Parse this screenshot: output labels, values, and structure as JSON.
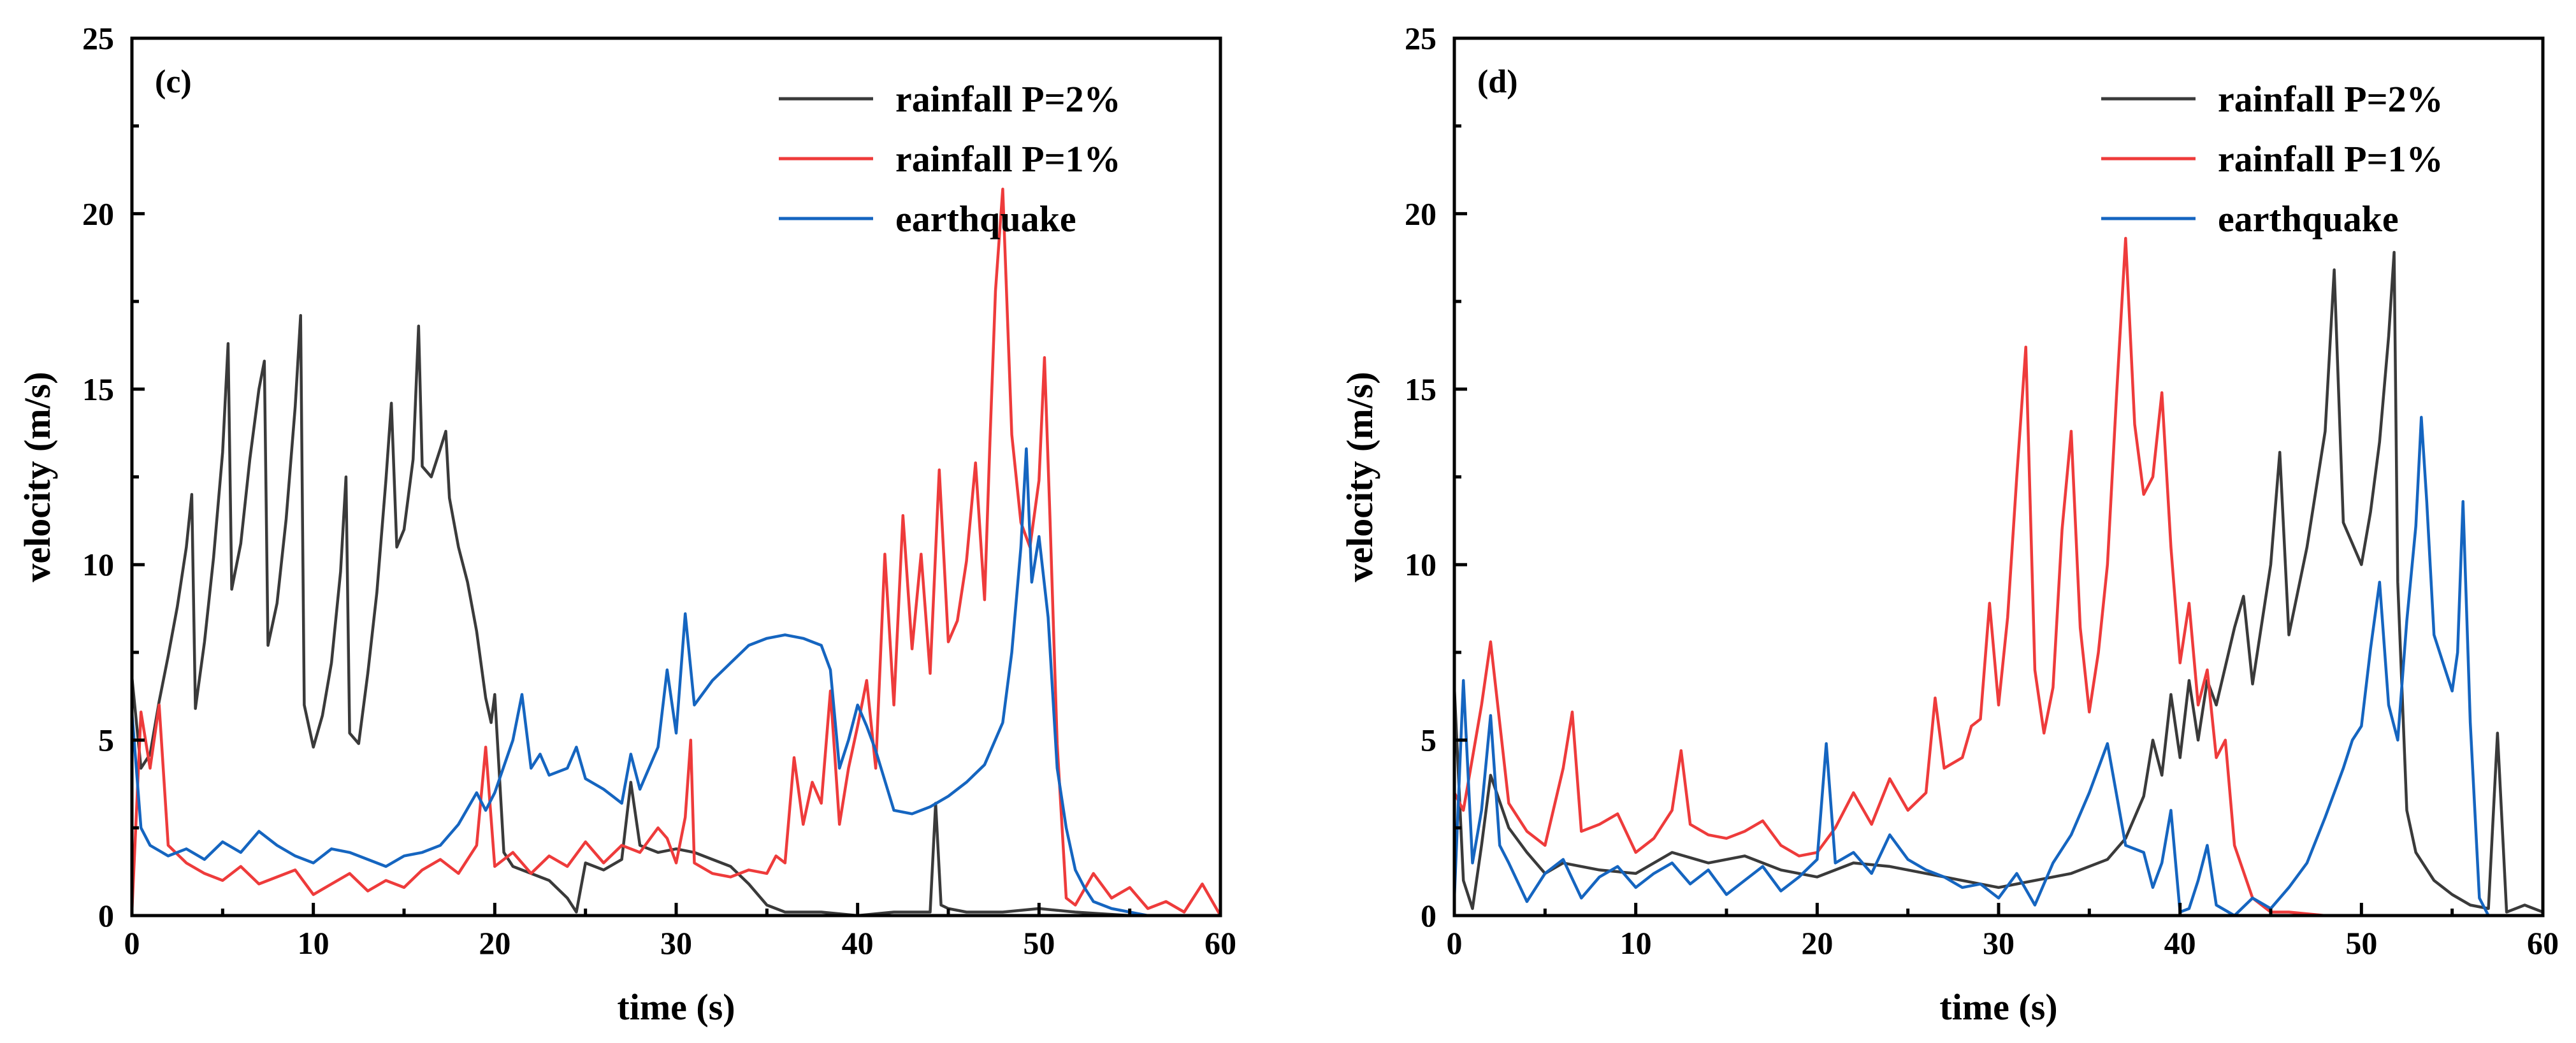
{
  "chart_data": [
    {
      "type": "line",
      "panel_label": "(c)",
      "xlabel": "time (s)",
      "ylabel": "velocity (m/s)",
      "xlim": [
        0,
        60
      ],
      "ylim": [
        0,
        25
      ],
      "xticks": [
        0,
        10,
        20,
        30,
        40,
        50,
        60
      ],
      "yticks": [
        0,
        5,
        10,
        15,
        20,
        25
      ],
      "legend_position": "top-right",
      "series": [
        {
          "name": "rainfall P=2%",
          "color": "#3a3a3a",
          "x": [
            0,
            0.5,
            1,
            1.5,
            2,
            2.5,
            3,
            3.3,
            3.5,
            4,
            4.5,
            5,
            5.3,
            5.5,
            6,
            6.5,
            7,
            7.3,
            7.5,
            8,
            8.5,
            9,
            9.3,
            9.5,
            10,
            10.5,
            11,
            11.5,
            11.8,
            12,
            12.5,
            13,
            13.5,
            14,
            14.3,
            14.6,
            15,
            15.5,
            15.8,
            16,
            16.5,
            17,
            17.3,
            17.5,
            18,
            18.5,
            19,
            19.5,
            19.8,
            20,
            20.5,
            21,
            22,
            23,
            24,
            24.5,
            25,
            26,
            27,
            27.5,
            28,
            29,
            30,
            31,
            32,
            33,
            34,
            35,
            36,
            38,
            40,
            42,
            44,
            44.3,
            44.6,
            45,
            46,
            48,
            50,
            52,
            55,
            58,
            60
          ],
          "y": [
            6.8,
            4.2,
            4.6,
            6.1,
            7.4,
            8.8,
            10.5,
            12.0,
            5.9,
            7.8,
            10.2,
            13.2,
            16.3,
            9.3,
            10.6,
            13.0,
            15.0,
            15.8,
            7.7,
            8.9,
            11.3,
            14.5,
            17.1,
            6.0,
            4.8,
            5.7,
            7.2,
            9.8,
            12.5,
            5.2,
            4.9,
            6.9,
            9.2,
            12.4,
            14.6,
            10.5,
            11.0,
            13.0,
            16.8,
            12.8,
            12.5,
            13.3,
            13.8,
            11.9,
            10.5,
            9.5,
            8.1,
            6.2,
            5.5,
            6.3,
            1.8,
            1.4,
            1.2,
            1.0,
            0.5,
            0.1,
            1.5,
            1.3,
            1.6,
            3.8,
            2.0,
            1.8,
            1.9,
            1.8,
            1.6,
            1.4,
            0.9,
            0.3,
            0.1,
            0.1,
            0.0,
            0.1,
            0.1,
            3.2,
            0.3,
            0.2,
            0.1,
            0.1,
            0.2,
            0.1,
            0.0,
            0.0,
            0.0
          ]
        },
        {
          "name": "rainfall P=1%",
          "color": "#ee3b3b",
          "x": [
            0,
            0.5,
            1,
            1.5,
            2,
            3,
            4,
            5,
            6,
            7,
            8,
            9,
            10,
            11,
            12,
            13,
            14,
            15,
            16,
            17,
            18,
            19,
            19.5,
            20,
            21,
            22,
            23,
            24,
            25,
            26,
            27,
            28,
            29,
            29.5,
            30,
            30.5,
            30.8,
            31,
            32,
            33,
            34,
            35,
            35.5,
            36,
            36.5,
            37,
            37.5,
            38,
            38.5,
            39,
            39.5,
            40,
            40.5,
            41,
            41.5,
            42,
            42.5,
            43,
            43.5,
            44,
            44.5,
            45,
            45.5,
            46,
            46.5,
            47,
            47.3,
            47.6,
            48,
            48.5,
            49,
            49.5,
            50,
            50.3,
            50.6,
            51,
            51.5,
            52,
            53,
            54,
            55,
            56,
            57,
            58,
            59,
            60
          ],
          "y": [
            0.1,
            5.8,
            4.2,
            6.0,
            2.0,
            1.5,
            1.2,
            1.0,
            1.4,
            0.9,
            1.1,
            1.3,
            0.6,
            0.9,
            1.2,
            0.7,
            1.0,
            0.8,
            1.3,
            1.6,
            1.2,
            2.0,
            4.8,
            1.4,
            1.8,
            1.2,
            1.7,
            1.4,
            2.1,
            1.5,
            2.0,
            1.8,
            2.5,
            2.2,
            1.5,
            2.8,
            5.0,
            1.5,
            1.2,
            1.1,
            1.3,
            1.2,
            1.7,
            1.5,
            4.5,
            2.6,
            3.8,
            3.2,
            6.4,
            2.6,
            4.2,
            5.4,
            6.7,
            4.2,
            10.3,
            6.0,
            11.4,
            7.6,
            10.3,
            6.9,
            12.7,
            7.8,
            8.4,
            10.1,
            12.9,
            9.0,
            13.6,
            17.8,
            20.7,
            13.7,
            11.2,
            10.5,
            12.4,
            15.9,
            11.4,
            4.9,
            0.5,
            0.3,
            1.2,
            0.5,
            0.8,
            0.2,
            0.4,
            0.1,
            0.9,
            0.0
          ]
        },
        {
          "name": "earthquake",
          "color": "#1565c0",
          "x": [
            0,
            0.5,
            1,
            2,
            3,
            4,
            5,
            6,
            7,
            8,
            9,
            10,
            11,
            12,
            13,
            14,
            15,
            16,
            17,
            18,
            19,
            19.5,
            20,
            21,
            21.5,
            22,
            22.5,
            23,
            24,
            24.5,
            25,
            26,
            26.5,
            27,
            27.5,
            28,
            29,
            29.5,
            30,
            30.5,
            31,
            32,
            33,
            34,
            35,
            36,
            37,
            38,
            38.5,
            39,
            39.5,
            40,
            40.5,
            41,
            42,
            43,
            44,
            45,
            46,
            47,
            48,
            48.5,
            49,
            49.3,
            49.6,
            50,
            50.5,
            51,
            51.5,
            52,
            52.5,
            53,
            54,
            55,
            56,
            57,
            58,
            59,
            60
          ],
          "y": [
            5.8,
            2.5,
            2.0,
            1.7,
            1.9,
            1.6,
            2.1,
            1.8,
            2.4,
            2.0,
            1.7,
            1.5,
            1.9,
            1.8,
            1.6,
            1.4,
            1.7,
            1.8,
            2.0,
            2.6,
            3.5,
            3.0,
            3.5,
            5.0,
            6.3,
            4.2,
            4.6,
            4.0,
            4.2,
            4.8,
            3.9,
            3.6,
            3.4,
            3.2,
            4.6,
            3.6,
            4.8,
            7.0,
            5.2,
            8.6,
            6.0,
            6.7,
            7.2,
            7.7,
            7.9,
            8.0,
            7.9,
            7.7,
            7.0,
            4.2,
            5.0,
            6.0,
            5.4,
            4.7,
            3.0,
            2.9,
            3.1,
            3.4,
            3.8,
            4.3,
            5.5,
            7.5,
            10.5,
            13.3,
            9.5,
            10.8,
            8.5,
            4.2,
            2.5,
            1.3,
            0.8,
            0.4,
            0.2,
            0.1,
            0.0,
            0.0,
            0.0,
            0.0,
            0.0
          ]
        }
      ]
    },
    {
      "type": "line",
      "panel_label": "(d)",
      "xlabel": "time (s)",
      "ylabel": "velocity (m/s)",
      "xlim": [
        0,
        60
      ],
      "ylim": [
        0,
        25
      ],
      "xticks": [
        0,
        10,
        20,
        30,
        40,
        50,
        60
      ],
      "yticks": [
        0,
        5,
        10,
        15,
        20,
        25
      ],
      "legend_position": "top-right",
      "series": [
        {
          "name": "rainfall P=2%",
          "color": "#3a3a3a",
          "x": [
            0,
            0.5,
            1,
            1.5,
            2,
            3,
            4,
            5,
            6,
            8,
            10,
            12,
            14,
            16,
            18,
            20,
            22,
            24,
            26,
            28,
            30,
            32,
            34,
            36,
            37,
            38,
            38.5,
            39,
            39.5,
            40,
            40.5,
            41,
            41.5,
            42,
            43,
            43.5,
            44,
            45,
            45.5,
            46,
            47,
            48,
            48.5,
            49,
            50,
            50.5,
            51,
            51.5,
            51.8,
            52,
            52.5,
            53,
            54,
            55,
            56,
            57,
            57.5,
            58,
            59,
            60
          ],
          "y": [
            6.5,
            1.0,
            0.2,
            2.0,
            4.0,
            2.5,
            1.8,
            1.2,
            1.5,
            1.3,
            1.2,
            1.8,
            1.5,
            1.7,
            1.3,
            1.1,
            1.5,
            1.4,
            1.2,
            1.0,
            0.8,
            1.0,
            1.2,
            1.6,
            2.2,
            3.4,
            5.0,
            4.0,
            6.3,
            4.5,
            6.7,
            5.0,
            6.7,
            6.0,
            8.2,
            9.1,
            6.6,
            10.0,
            13.2,
            8.0,
            10.5,
            13.8,
            18.4,
            11.2,
            10.0,
            11.5,
            13.5,
            16.5,
            18.9,
            9.5,
            3.0,
            1.8,
            1.0,
            0.6,
            0.3,
            0.2,
            5.2,
            0.1,
            0.3,
            0.1
          ]
        },
        {
          "name": "rainfall P=1%",
          "color": "#ee3b3b",
          "x": [
            0,
            0.5,
            1,
            1.5,
            2,
            3,
            4,
            5,
            6,
            6.5,
            7,
            8,
            9,
            10,
            11,
            12,
            12.5,
            13,
            14,
            15,
            16,
            17,
            18,
            19,
            20,
            21,
            22,
            23,
            24,
            25,
            26,
            26.5,
            27,
            28,
            28.5,
            29,
            29.5,
            30,
            30.5,
            31,
            31.5,
            32,
            32.5,
            33,
            33.5,
            34,
            34.5,
            35,
            35.5,
            36,
            36.5,
            37,
            37.5,
            38,
            38.5,
            39,
            39.5,
            40,
            40.5,
            41,
            41.5,
            42,
            42.5,
            43,
            44,
            45,
            46,
            48,
            50,
            55,
            60
          ],
          "y": [
            3.5,
            3.0,
            4.5,
            6.0,
            7.8,
            3.2,
            2.4,
            2.0,
            4.2,
            5.8,
            2.4,
            2.6,
            2.9,
            1.8,
            2.2,
            3.0,
            4.7,
            2.6,
            2.3,
            2.2,
            2.4,
            2.7,
            2.0,
            1.7,
            1.8,
            2.5,
            3.5,
            2.6,
            3.9,
            3.0,
            3.5,
            6.2,
            4.2,
            4.5,
            5.4,
            5.6,
            8.9,
            6.0,
            8.5,
            12.5,
            16.2,
            7.0,
            5.2,
            6.5,
            11.0,
            13.8,
            8.2,
            5.8,
            7.5,
            10.0,
            14.8,
            19.3,
            14.0,
            12.0,
            12.5,
            14.9,
            10.5,
            7.2,
            8.9,
            6.0,
            7.0,
            4.5,
            5.0,
            2.0,
            0.5,
            0.1,
            0.1,
            0.0,
            0.0,
            0.0,
            0.0
          ]
        },
        {
          "name": "earthquake",
          "color": "#1565c0",
          "x": [
            0,
            0.5,
            1,
            1.5,
            2,
            2.5,
            3,
            4,
            5,
            6,
            7,
            8,
            9,
            10,
            11,
            12,
            13,
            14,
            15,
            16,
            17,
            18,
            19,
            20,
            20.5,
            21,
            22,
            23,
            24,
            25,
            26,
            27,
            28,
            29,
            30,
            31,
            32,
            33,
            34,
            35,
            36,
            37,
            38,
            38.5,
            39,
            39.5,
            40,
            40.5,
            41,
            41.5,
            42,
            43,
            44,
            45,
            46,
            47,
            48,
            49,
            49.5,
            50,
            50.5,
            51,
            51.5,
            52,
            52.5,
            53,
            53.3,
            53.6,
            54,
            54.5,
            55,
            55.3,
            55.6,
            56,
            56.5,
            57,
            58,
            59,
            60
          ],
          "y": [
            0.5,
            6.7,
            1.5,
            3.0,
            5.7,
            2.0,
            1.5,
            0.4,
            1.2,
            1.6,
            0.5,
            1.1,
            1.4,
            0.8,
            1.2,
            1.5,
            0.9,
            1.3,
            0.6,
            1.0,
            1.4,
            0.7,
            1.1,
            1.6,
            4.9,
            1.5,
            1.8,
            1.2,
            2.3,
            1.6,
            1.3,
            1.1,
            0.8,
            0.9,
            0.5,
            1.2,
            0.3,
            1.5,
            2.3,
            3.5,
            4.9,
            2.0,
            1.8,
            0.8,
            1.5,
            3.0,
            0.1,
            0.2,
            1.0,
            2.0,
            0.3,
            0.0,
            0.5,
            0.2,
            0.8,
            1.5,
            2.8,
            4.2,
            5.0,
            5.4,
            7.6,
            9.5,
            6.0,
            5.0,
            8.4,
            11.1,
            14.2,
            11.8,
            8.0,
            7.2,
            6.4,
            7.5,
            11.8,
            5.5,
            0.5,
            0.0,
            0.0,
            0.0,
            0.0
          ]
        }
      ]
    }
  ]
}
